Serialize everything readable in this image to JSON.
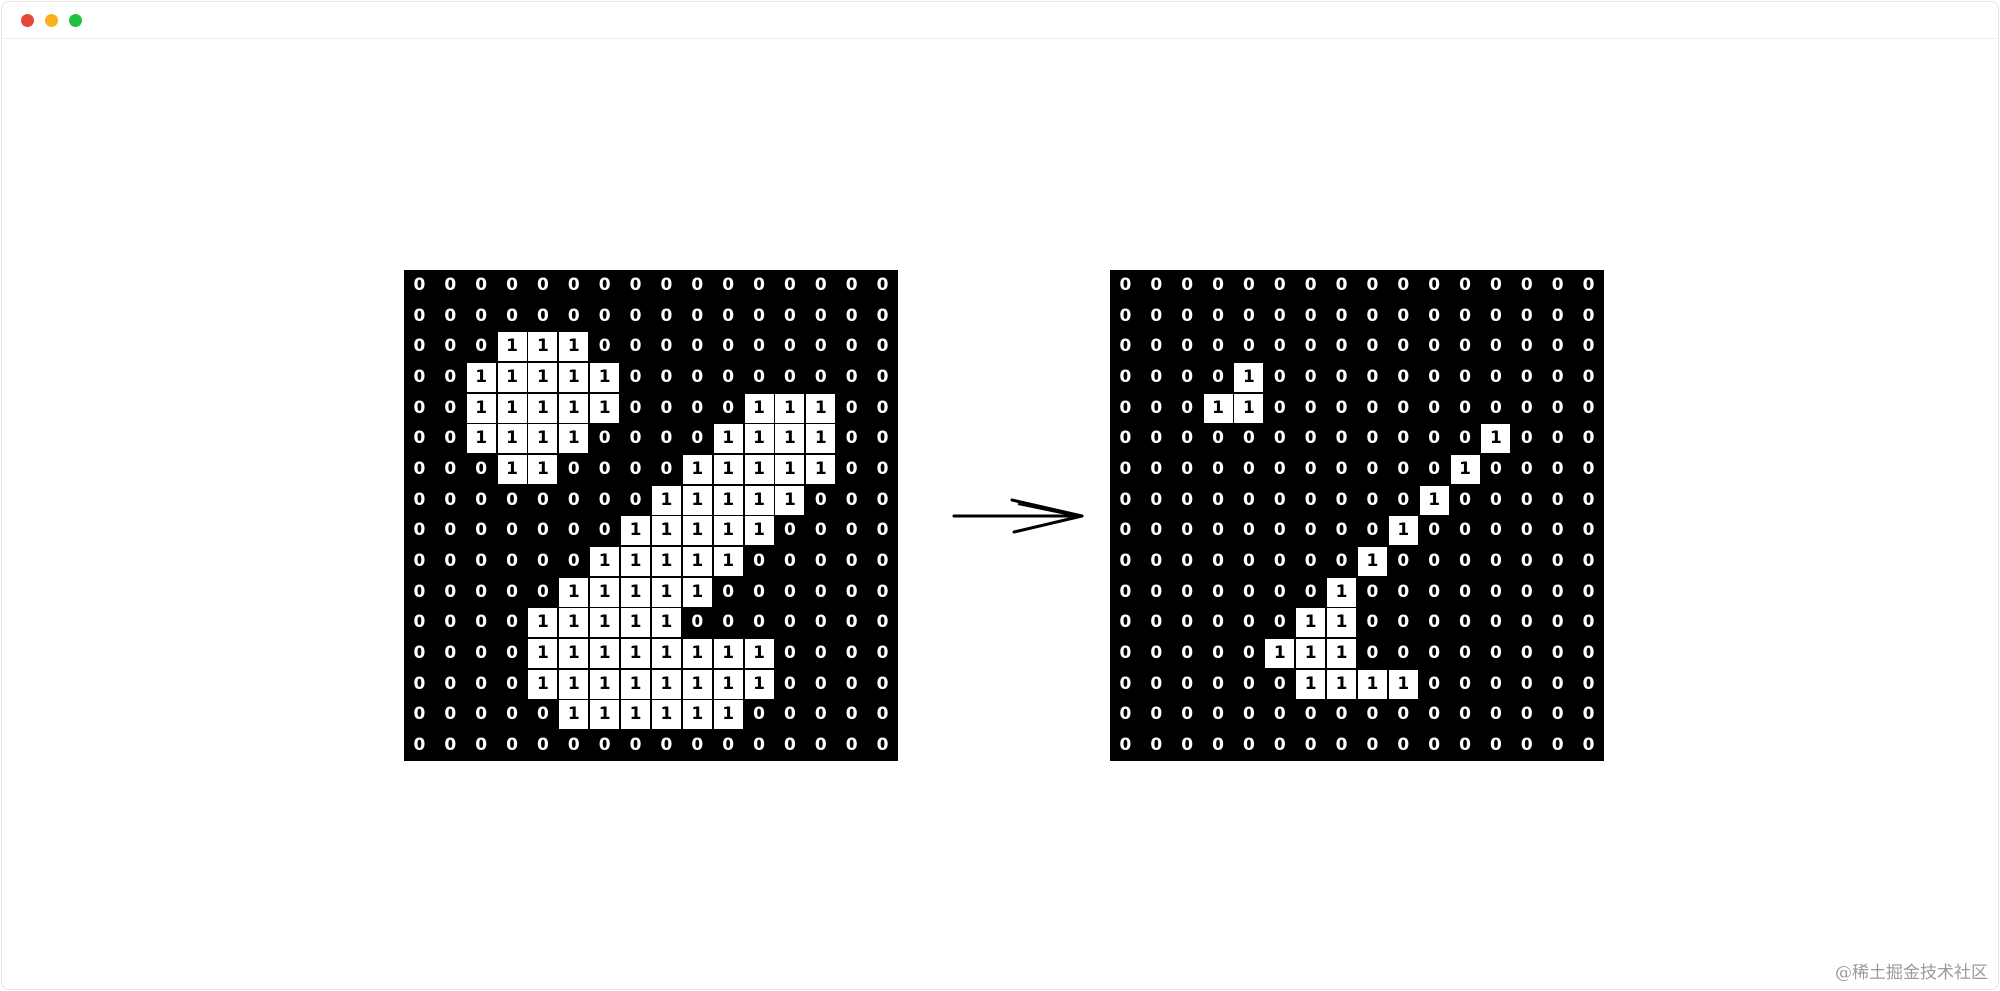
{
  "window": {
    "controls": {
      "close_color": "#e8483b",
      "minimize_color": "#f5b21c",
      "maximize_color": "#1fc43c"
    }
  },
  "figure": {
    "input_grid": [
      [
        0,
        0,
        0,
        0,
        0,
        0,
        0,
        0,
        0,
        0,
        0,
        0,
        0,
        0,
        0,
        0
      ],
      [
        0,
        0,
        0,
        0,
        0,
        0,
        0,
        0,
        0,
        0,
        0,
        0,
        0,
        0,
        0,
        0
      ],
      [
        0,
        0,
        0,
        1,
        1,
        1,
        0,
        0,
        0,
        0,
        0,
        0,
        0,
        0,
        0,
        0
      ],
      [
        0,
        0,
        1,
        1,
        1,
        1,
        1,
        0,
        0,
        0,
        0,
        0,
        0,
        0,
        0,
        0
      ],
      [
        0,
        0,
        1,
        1,
        1,
        1,
        1,
        0,
        0,
        0,
        0,
        1,
        1,
        1,
        0,
        0
      ],
      [
        0,
        0,
        1,
        1,
        1,
        1,
        0,
        0,
        0,
        0,
        1,
        1,
        1,
        1,
        0,
        0
      ],
      [
        0,
        0,
        0,
        1,
        1,
        0,
        0,
        0,
        0,
        1,
        1,
        1,
        1,
        1,
        0,
        0
      ],
      [
        0,
        0,
        0,
        0,
        0,
        0,
        0,
        0,
        1,
        1,
        1,
        1,
        1,
        0,
        0,
        0
      ],
      [
        0,
        0,
        0,
        0,
        0,
        0,
        0,
        1,
        1,
        1,
        1,
        1,
        0,
        0,
        0,
        0
      ],
      [
        0,
        0,
        0,
        0,
        0,
        0,
        1,
        1,
        1,
        1,
        1,
        0,
        0,
        0,
        0,
        0
      ],
      [
        0,
        0,
        0,
        0,
        0,
        1,
        1,
        1,
        1,
        1,
        0,
        0,
        0,
        0,
        0,
        0
      ],
      [
        0,
        0,
        0,
        0,
        1,
        1,
        1,
        1,
        1,
        0,
        0,
        0,
        0,
        0,
        0,
        0
      ],
      [
        0,
        0,
        0,
        0,
        1,
        1,
        1,
        1,
        1,
        1,
        1,
        1,
        0,
        0,
        0,
        0
      ],
      [
        0,
        0,
        0,
        0,
        1,
        1,
        1,
        1,
        1,
        1,
        1,
        1,
        0,
        0,
        0,
        0
      ],
      [
        0,
        0,
        0,
        0,
        0,
        1,
        1,
        1,
        1,
        1,
        1,
        0,
        0,
        0,
        0,
        0
      ],
      [
        0,
        0,
        0,
        0,
        0,
        0,
        0,
        0,
        0,
        0,
        0,
        0,
        0,
        0,
        0,
        0
      ]
    ],
    "output_grid": [
      [
        0,
        0,
        0,
        0,
        0,
        0,
        0,
        0,
        0,
        0,
        0,
        0,
        0,
        0,
        0,
        0
      ],
      [
        0,
        0,
        0,
        0,
        0,
        0,
        0,
        0,
        0,
        0,
        0,
        0,
        0,
        0,
        0,
        0
      ],
      [
        0,
        0,
        0,
        0,
        0,
        0,
        0,
        0,
        0,
        0,
        0,
        0,
        0,
        0,
        0,
        0
      ],
      [
        0,
        0,
        0,
        0,
        1,
        0,
        0,
        0,
        0,
        0,
        0,
        0,
        0,
        0,
        0,
        0
      ],
      [
        0,
        0,
        0,
        1,
        1,
        0,
        0,
        0,
        0,
        0,
        0,
        0,
        0,
        0,
        0,
        0
      ],
      [
        0,
        0,
        0,
        0,
        0,
        0,
        0,
        0,
        0,
        0,
        0,
        0,
        1,
        0,
        0,
        0
      ],
      [
        0,
        0,
        0,
        0,
        0,
        0,
        0,
        0,
        0,
        0,
        0,
        1,
        0,
        0,
        0,
        0
      ],
      [
        0,
        0,
        0,
        0,
        0,
        0,
        0,
        0,
        0,
        0,
        1,
        0,
        0,
        0,
        0,
        0
      ],
      [
        0,
        0,
        0,
        0,
        0,
        0,
        0,
        0,
        0,
        1,
        0,
        0,
        0,
        0,
        0,
        0
      ],
      [
        0,
        0,
        0,
        0,
        0,
        0,
        0,
        0,
        1,
        0,
        0,
        0,
        0,
        0,
        0,
        0
      ],
      [
        0,
        0,
        0,
        0,
        0,
        0,
        0,
        1,
        0,
        0,
        0,
        0,
        0,
        0,
        0,
        0
      ],
      [
        0,
        0,
        0,
        0,
        0,
        0,
        1,
        1,
        0,
        0,
        0,
        0,
        0,
        0,
        0,
        0
      ],
      [
        0,
        0,
        0,
        0,
        0,
        1,
        1,
        1,
        0,
        0,
        0,
        0,
        0,
        0,
        0,
        0
      ],
      [
        0,
        0,
        0,
        0,
        0,
        0,
        1,
        1,
        1,
        1,
        0,
        0,
        0,
        0,
        0,
        0
      ],
      [
        0,
        0,
        0,
        0,
        0,
        0,
        0,
        0,
        0,
        0,
        0,
        0,
        0,
        0,
        0,
        0
      ],
      [
        0,
        0,
        0,
        0,
        0,
        0,
        0,
        0,
        0,
        0,
        0,
        0,
        0,
        0,
        0,
        0
      ]
    ],
    "arrow_icon": "right-arrow-icon"
  },
  "watermark": {
    "text": "@稀土掘金技术社区"
  }
}
